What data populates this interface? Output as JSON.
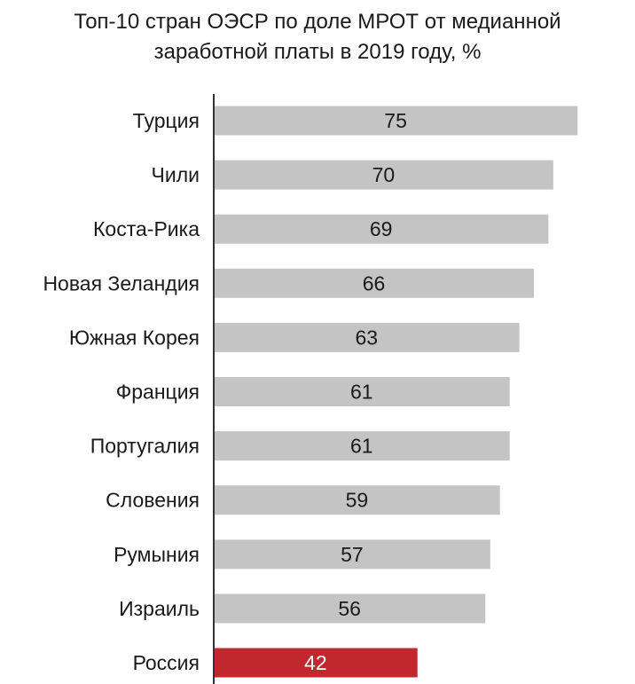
{
  "chart_data": {
    "type": "bar",
    "orientation": "horizontal",
    "title": "Топ-10 стран ОЭСР по доле МРОТ от медианной заработной платы в 2019 году, %",
    "title_lines": [
      "Топ-10 стран ОЭСР по доле МРОТ от медианной",
      "заработной платы в 2019 году, %"
    ],
    "categories": [
      "Турция",
      "Чили",
      "Коста-Рика",
      "Новая Зеландия",
      "Южная Корея",
      "Франция",
      "Португалия",
      "Словения",
      "Румыния",
      "Израиль",
      "Россия"
    ],
    "values": [
      75,
      70,
      69,
      66,
      63,
      61,
      61,
      59,
      57,
      56,
      42
    ],
    "colors": {
      "default_bar": "#c4c4c4",
      "highlight_bar": "#c0282d",
      "axis": "#333333",
      "label_dark": "#1a1a1a",
      "label_light": "#ffffff"
    },
    "highlight_category": "Россия",
    "xlim": [
      0,
      75
    ],
    "grid": false,
    "legend": "none"
  }
}
